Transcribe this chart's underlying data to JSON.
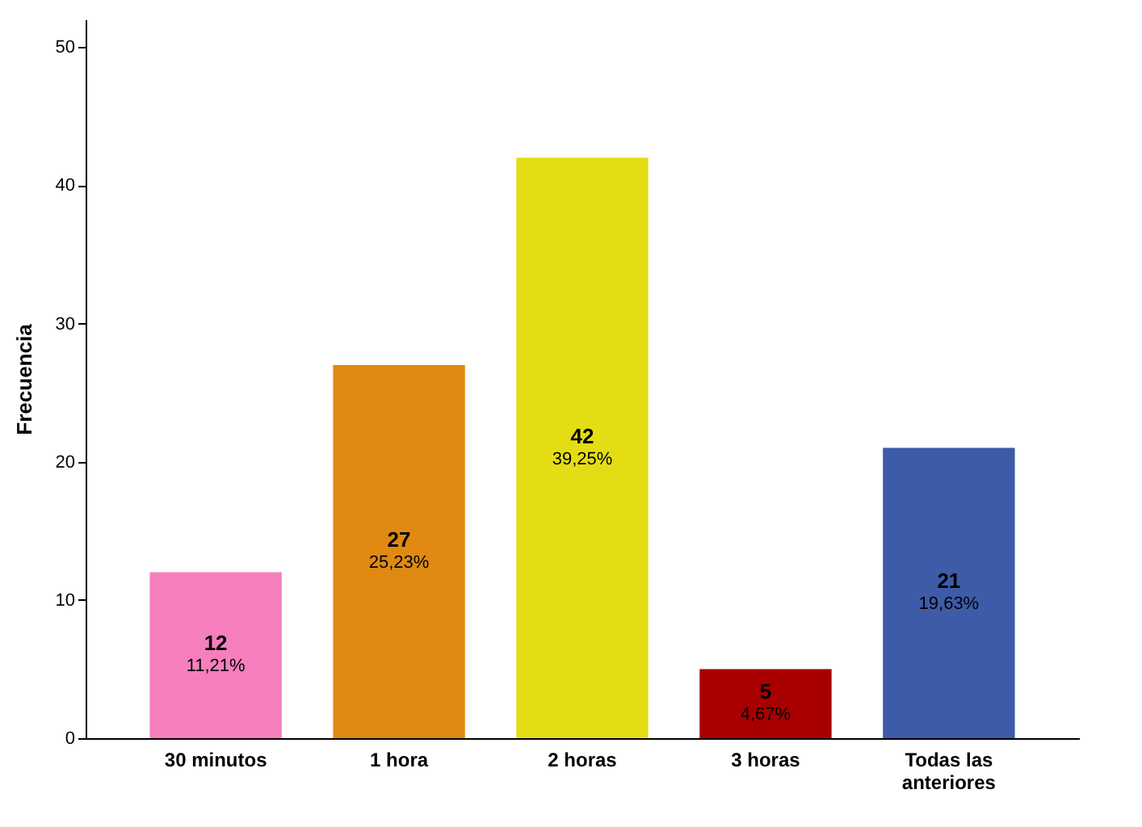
{
  "chart_data": {
    "type": "bar",
    "ylabel": "Frecuencia",
    "categories": [
      "30 minutos",
      "1 hora",
      "2 horas",
      "3 horas",
      "Todas las anteriores"
    ],
    "values": [
      12,
      27,
      42,
      5,
      21
    ],
    "colors": [
      "#f77fbe",
      "#e08a12",
      "#e5dd14",
      "#a80000",
      "#3e5ba8"
    ],
    "value_labels": [
      "12\n11,21%",
      "27\n25,23%",
      "42\n39,25%",
      "5\n4,67%",
      "21\n19,63%"
    ],
    "ylim": [
      0,
      52
    ],
    "yticks": [
      0,
      10,
      20,
      30,
      40,
      50
    ],
    "grid": false
  }
}
